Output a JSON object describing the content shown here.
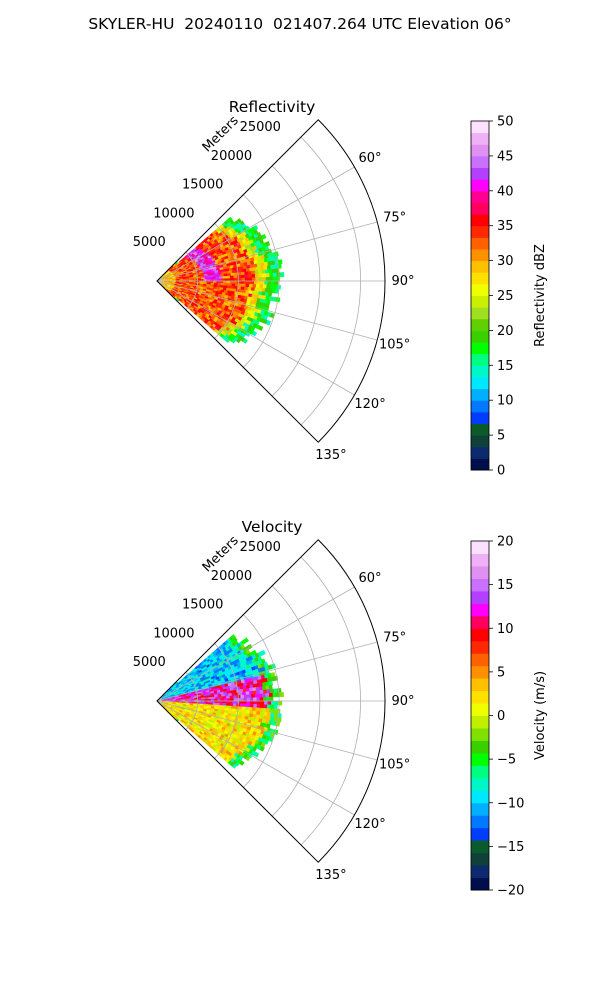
{
  "figure": {
    "title": "SKYLER-HU  20240110  021407.264 UTC Elevation 06°"
  },
  "chart_data": [
    {
      "type": "heatmap",
      "title": "Reflectivity",
      "radial_axis_label": "Meters",
      "radial_ticks": [
        5000,
        10000,
        15000,
        20000,
        25000
      ],
      "radial_tick_labels": [
        "5000",
        "10000",
        "15000",
        "20000",
        "25000"
      ],
      "angle_ticks": [
        60,
        75,
        90,
        105,
        120,
        135
      ],
      "angle_tick_labels": [
        "60°",
        "75°",
        "90°",
        "105°",
        "120°",
        "135°"
      ],
      "azimuth_range_deg": [
        45,
        135
      ],
      "range_max_m": 28000,
      "grid": true,
      "colorbar": {
        "label": "Reflectivity dBZ",
        "min": 0,
        "max": 50,
        "ticks": [
          0,
          5,
          10,
          15,
          20,
          25,
          30,
          35,
          40,
          45,
          50
        ],
        "tick_labels": [
          "0",
          "5",
          "10",
          "15",
          "20",
          "25",
          "30",
          "35",
          "40",
          "45",
          "50"
        ],
        "colors": [
          "#000e4e",
          "#0c2a6d",
          "#10403a",
          "#0a5a2a",
          "#003dff",
          "#0078ff",
          "#00b0ff",
          "#00e8ff",
          "#00f8c8",
          "#00ff80",
          "#00ff00",
          "#3ad000",
          "#60d000",
          "#a0e020",
          "#c8f000",
          "#f0ff00",
          "#ffe000",
          "#ffc000",
          "#ff9000",
          "#ff6000",
          "#ff2800",
          "#ff0000",
          "#ff0060",
          "#ff0090",
          "#ff00ff",
          "#b440ff",
          "#c870ff",
          "#e090f0",
          "#f0b0f8",
          "#fce0ff"
        ]
      },
      "echo": {
        "near_range_m": 600,
        "far_range_m": 15000,
        "core_value_dbz": 33,
        "edge_value_dbz": 17
      }
    },
    {
      "type": "heatmap",
      "title": "Velocity",
      "radial_axis_label": "Meters",
      "radial_ticks": [
        5000,
        10000,
        15000,
        20000,
        25000
      ],
      "radial_tick_labels": [
        "5000",
        "10000",
        "15000",
        "20000",
        "25000"
      ],
      "angle_ticks": [
        60,
        75,
        90,
        105,
        120,
        135
      ],
      "angle_tick_labels": [
        "60°",
        "75°",
        "90°",
        "105°",
        "120°",
        "135°"
      ],
      "azimuth_range_deg": [
        45,
        135
      ],
      "range_max_m": 28000,
      "grid": true,
      "colorbar": {
        "label": "Velocity (m/s)",
        "min": -20,
        "max": 20,
        "ticks": [
          -20,
          -15,
          -10,
          -5,
          0,
          5,
          10,
          15,
          20
        ],
        "tick_labels": [
          "−20",
          "−15",
          "−10",
          "−5",
          "0",
          "5",
          "10",
          "15",
          "20"
        ],
        "colors": [
          "#000e4e",
          "#0c2a6d",
          "#10403a",
          "#0a5a2a",
          "#003dff",
          "#0078ff",
          "#00b0ff",
          "#00e8ff",
          "#00f8c8",
          "#00ff80",
          "#00ff00",
          "#3ad000",
          "#80e000",
          "#c0f000",
          "#f0ff00",
          "#ffe000",
          "#ffc000",
          "#ff9000",
          "#ff6000",
          "#ff2800",
          "#ff0000",
          "#ff0060",
          "#ff00ff",
          "#b440ff",
          "#c870ff",
          "#e090f0",
          "#f0b0f8",
          "#fce0ff"
        ]
      },
      "echo": {
        "near_range_m": 600,
        "far_range_m": 15000,
        "north_value_ms": -10,
        "center_value_ms": 12,
        "south_value_ms": 2
      }
    }
  ]
}
